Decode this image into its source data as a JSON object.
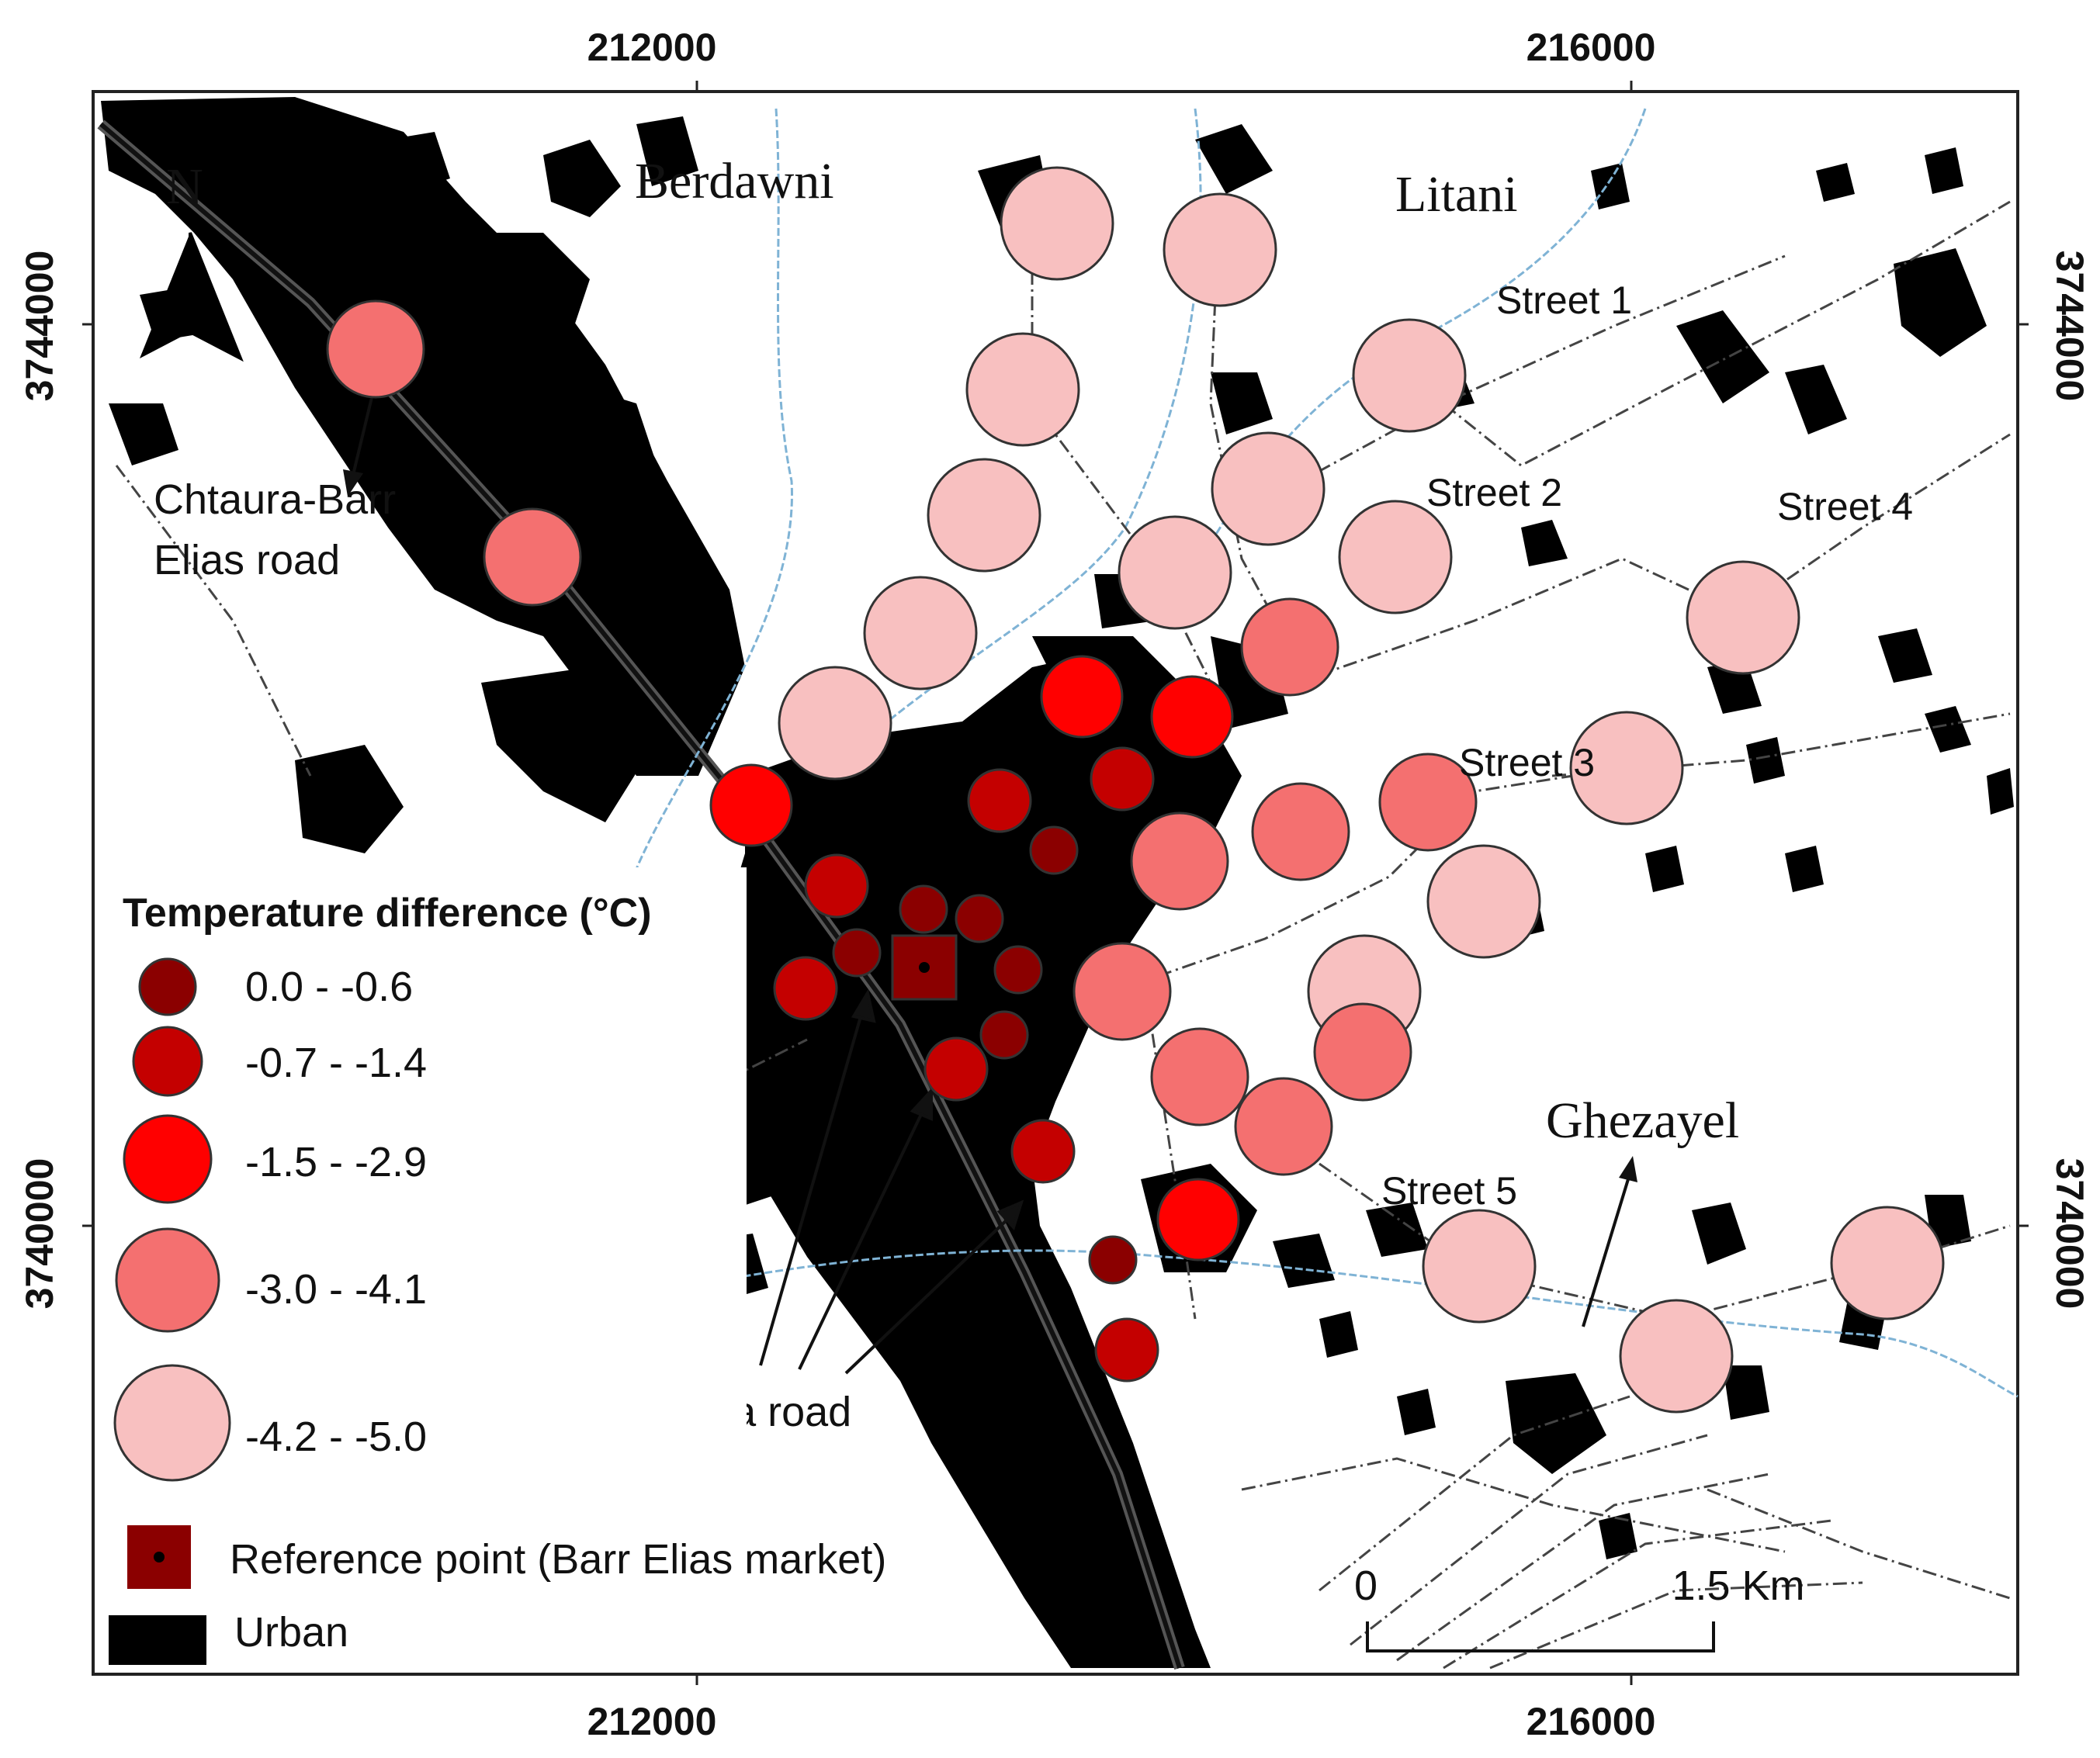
{
  "map": {
    "axis_labels": {
      "x_left": "212000",
      "x_right": "216000",
      "y_top": "3744000",
      "y_bottom": "3740000"
    },
    "north_label": "N",
    "places": {
      "berdawni": "Berdawni",
      "litani": "Litani",
      "ghezayel": "Ghezayel"
    },
    "streets": {
      "street1": "Street 1",
      "street2": "Street 2",
      "street3": "Street 3",
      "street4": "Street 4",
      "street5": "Street 5"
    },
    "roads": {
      "chtaura_line1": "Chtaura-Barr",
      "chtaura_line2": "Elias road",
      "masnaa": "Masnaa road"
    },
    "scale_bar": {
      "start": "0",
      "end": "1.5 Km"
    }
  },
  "legend": {
    "title": "Temperature difference (°C)",
    "classes": [
      {
        "label": "0.0 - -0.6",
        "color": "#8b0000"
      },
      {
        "label": "-0.7 - -1.4",
        "color": "#c40000"
      },
      {
        "label": "-1.5 - -2.9",
        "color": "#ff0000"
      },
      {
        "label": "-3.0 - -4.1",
        "color": "#f47070"
      },
      {
        "label": "-4.2 - -5.0",
        "color": "#f8c0c0"
      }
    ],
    "reference": "Reference point (Barr Elias market)",
    "urban": "Urban"
  }
}
